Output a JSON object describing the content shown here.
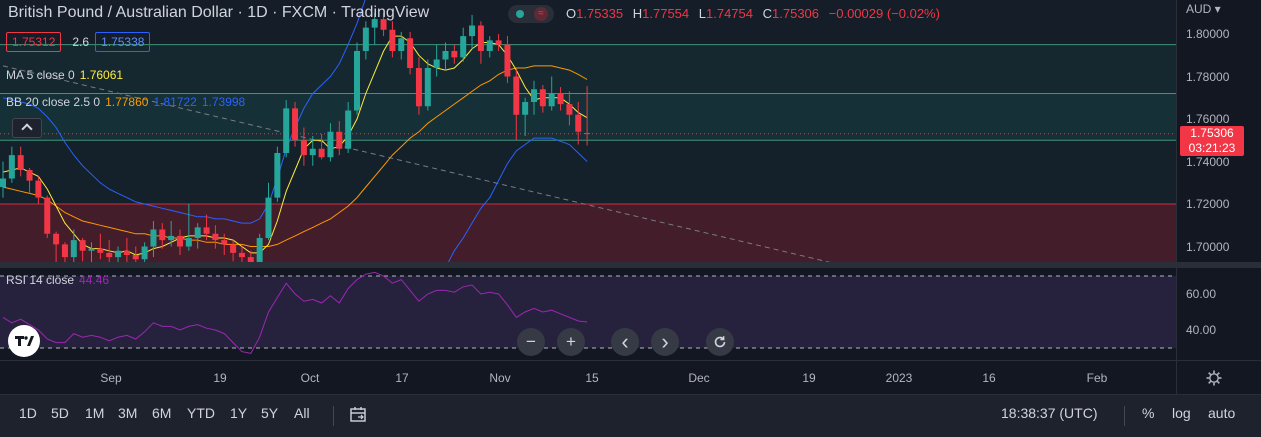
{
  "header": {
    "title": "British Pound / Australian Dollar · 1D · FXCM · TradingView",
    "ohlc": {
      "o_label": "O",
      "o": "1.75335",
      "h_label": "H",
      "h": "1.77554",
      "l_label": "L",
      "l": "1.74754",
      "c_label": "C",
      "c": "1.75306",
      "chg": "−0.00029 (−0.02%)"
    }
  },
  "legend": {
    "sell": "1.75312",
    "spread": "2.6",
    "buy": "1.75338",
    "ma_label": "MA 5 close 0",
    "ma_value": "1.76061",
    "bb_label": "BB 20 close 2.5 0",
    "bb_basis": "1.77860",
    "bb_upper": "1.81722",
    "bb_lower": "1.73998",
    "rsi_label": "RSI 14 close",
    "rsi_value": "44.46"
  },
  "price_axis": {
    "currency": "AUD",
    "ticks": [
      "1.80000",
      "1.78000",
      "1.76000",
      "1.74000",
      "1.72000",
      "1.70000"
    ],
    "last_price": "1.75306",
    "countdown": "03:21:23"
  },
  "rsi_axis": {
    "ticks": [
      "60.00",
      "40.00"
    ]
  },
  "time_axis": {
    "labels": [
      "Sep",
      "19",
      "Oct",
      "17",
      "Nov",
      "15",
      "Dec",
      "19",
      "2023",
      "16",
      "Feb"
    ]
  },
  "toolbar": {
    "ranges": [
      "1D",
      "5D",
      "1M",
      "3M",
      "6M",
      "YTD",
      "1Y",
      "5Y",
      "All"
    ],
    "clock": "18:38:37 (UTC)",
    "percent": "%",
    "log": "log",
    "auto": "auto"
  },
  "nav": {
    "zoom_out": "−",
    "zoom_in": "+",
    "left": "‹",
    "right": "›"
  },
  "colors": {
    "up": "#26a69a",
    "down": "#f23645",
    "ma": "#ffeb3b",
    "bb_basis": "#ff9800",
    "bb_band": "#2962ff",
    "rsi": "#9c27b0"
  },
  "chart_data": {
    "type": "candlestick",
    "candles": [
      {
        "o": 1.728,
        "h": 1.74,
        "l": 1.723,
        "c": 1.732
      },
      {
        "o": 1.732,
        "h": 1.747,
        "l": 1.73,
        "c": 1.743
      },
      {
        "o": 1.743,
        "h": 1.747,
        "l": 1.733,
        "c": 1.736
      },
      {
        "o": 1.736,
        "h": 1.737,
        "l": 1.725,
        "c": 1.731
      },
      {
        "o": 1.731,
        "h": 1.733,
        "l": 1.72,
        "c": 1.723
      },
      {
        "o": 1.723,
        "h": 1.724,
        "l": 1.704,
        "c": 1.706
      },
      {
        "o": 1.706,
        "h": 1.707,
        "l": 1.692,
        "c": 1.701
      },
      {
        "o": 1.701,
        "h": 1.702,
        "l": 1.69,
        "c": 1.695
      },
      {
        "o": 1.695,
        "h": 1.708,
        "l": 1.69,
        "c": 1.703
      },
      {
        "o": 1.703,
        "h": 1.704,
        "l": 1.693,
        "c": 1.698
      },
      {
        "o": 1.698,
        "h": 1.702,
        "l": 1.692,
        "c": 1.699
      },
      {
        "o": 1.699,
        "h": 1.706,
        "l": 1.694,
        "c": 1.697
      },
      {
        "o": 1.697,
        "h": 1.703,
        "l": 1.692,
        "c": 1.695
      },
      {
        "o": 1.695,
        "h": 1.7,
        "l": 1.688,
        "c": 1.698
      },
      {
        "o": 1.698,
        "h": 1.704,
        "l": 1.691,
        "c": 1.696
      },
      {
        "o": 1.696,
        "h": 1.7,
        "l": 1.688,
        "c": 1.694
      },
      {
        "o": 1.694,
        "h": 1.702,
        "l": 1.69,
        "c": 1.7
      },
      {
        "o": 1.7,
        "h": 1.712,
        "l": 1.695,
        "c": 1.708
      },
      {
        "o": 1.708,
        "h": 1.711,
        "l": 1.699,
        "c": 1.703
      },
      {
        "o": 1.703,
        "h": 1.712,
        "l": 1.7,
        "c": 1.705
      },
      {
        "o": 1.705,
        "h": 1.708,
        "l": 1.696,
        "c": 1.7
      },
      {
        "o": 1.7,
        "h": 1.72,
        "l": 1.698,
        "c": 1.704
      },
      {
        "o": 1.704,
        "h": 1.711,
        "l": 1.699,
        "c": 1.709
      },
      {
        "o": 1.709,
        "h": 1.715,
        "l": 1.703,
        "c": 1.706
      },
      {
        "o": 1.706,
        "h": 1.71,
        "l": 1.699,
        "c": 1.703
      },
      {
        "o": 1.703,
        "h": 1.706,
        "l": 1.696,
        "c": 1.701
      },
      {
        "o": 1.701,
        "h": 1.703,
        "l": 1.693,
        "c": 1.697
      },
      {
        "o": 1.697,
        "h": 1.7,
        "l": 1.688,
        "c": 1.695
      },
      {
        "o": 1.695,
        "h": 1.698,
        "l": 1.686,
        "c": 1.69
      },
      {
        "o": 1.69,
        "h": 1.706,
        "l": 1.688,
        "c": 1.704
      },
      {
        "o": 1.704,
        "h": 1.73,
        "l": 1.703,
        "c": 1.723
      },
      {
        "o": 1.723,
        "h": 1.747,
        "l": 1.721,
        "c": 1.744
      },
      {
        "o": 1.744,
        "h": 1.769,
        "l": 1.742,
        "c": 1.765
      },
      {
        "o": 1.765,
        "h": 1.768,
        "l": 1.747,
        "c": 1.75
      },
      {
        "o": 1.75,
        "h": 1.756,
        "l": 1.738,
        "c": 1.743
      },
      {
        "o": 1.743,
        "h": 1.752,
        "l": 1.738,
        "c": 1.746
      },
      {
        "o": 1.746,
        "h": 1.753,
        "l": 1.741,
        "c": 1.742
      },
      {
        "o": 1.742,
        "h": 1.758,
        "l": 1.74,
        "c": 1.754
      },
      {
        "o": 1.754,
        "h": 1.759,
        "l": 1.743,
        "c": 1.746
      },
      {
        "o": 1.746,
        "h": 1.768,
        "l": 1.744,
        "c": 1.764
      },
      {
        "o": 1.764,
        "h": 1.796,
        "l": 1.762,
        "c": 1.792
      },
      {
        "o": 1.792,
        "h": 1.806,
        "l": 1.788,
        "c": 1.803
      },
      {
        "o": 1.803,
        "h": 1.81,
        "l": 1.795,
        "c": 1.807
      },
      {
        "o": 1.807,
        "h": 1.81,
        "l": 1.799,
        "c": 1.802
      },
      {
        "o": 1.802,
        "h": 1.806,
        "l": 1.789,
        "c": 1.792
      },
      {
        "o": 1.792,
        "h": 1.801,
        "l": 1.788,
        "c": 1.798
      },
      {
        "o": 1.798,
        "h": 1.801,
        "l": 1.781,
        "c": 1.784
      },
      {
        "o": 1.784,
        "h": 1.789,
        "l": 1.762,
        "c": 1.766
      },
      {
        "o": 1.766,
        "h": 1.788,
        "l": 1.764,
        "c": 1.784
      },
      {
        "o": 1.784,
        "h": 1.795,
        "l": 1.78,
        "c": 1.788
      },
      {
        "o": 1.788,
        "h": 1.796,
        "l": 1.783,
        "c": 1.792
      },
      {
        "o": 1.792,
        "h": 1.795,
        "l": 1.786,
        "c": 1.789
      },
      {
        "o": 1.789,
        "h": 1.803,
        "l": 1.787,
        "c": 1.799
      },
      {
        "o": 1.799,
        "h": 1.809,
        "l": 1.793,
        "c": 1.804
      },
      {
        "o": 1.804,
        "h": 1.806,
        "l": 1.786,
        "c": 1.792
      },
      {
        "o": 1.792,
        "h": 1.799,
        "l": 1.789,
        "c": 1.797
      },
      {
        "o": 1.797,
        "h": 1.8,
        "l": 1.792,
        "c": 1.795
      },
      {
        "o": 1.795,
        "h": 1.799,
        "l": 1.777,
        "c": 1.78
      },
      {
        "o": 1.78,
        "h": 1.783,
        "l": 1.75,
        "c": 1.762
      },
      {
        "o": 1.762,
        "h": 1.77,
        "l": 1.752,
        "c": 1.768
      },
      {
        "o": 1.768,
        "h": 1.778,
        "l": 1.762,
        "c": 1.774
      },
      {
        "o": 1.774,
        "h": 1.776,
        "l": 1.763,
        "c": 1.766
      },
      {
        "o": 1.766,
        "h": 1.78,
        "l": 1.764,
        "c": 1.772
      },
      {
        "o": 1.772,
        "h": 1.775,
        "l": 1.764,
        "c": 1.767
      },
      {
        "o": 1.767,
        "h": 1.773,
        "l": 1.757,
        "c": 1.762
      },
      {
        "o": 1.762,
        "h": 1.768,
        "l": 1.748,
        "c": 1.754
      },
      {
        "o": 1.7534,
        "h": 1.7755,
        "l": 1.7475,
        "c": 1.7531
      }
    ],
    "ma5": [
      1.735,
      1.736,
      1.737,
      1.735,
      1.733,
      1.727,
      1.719,
      1.711,
      1.706,
      1.701,
      1.699,
      1.699,
      1.698,
      1.697,
      1.698,
      1.696,
      1.697,
      1.699,
      1.7,
      1.702,
      1.704,
      1.705,
      1.705,
      1.705,
      1.704,
      1.704,
      1.703,
      1.7,
      1.697,
      1.697,
      1.701,
      1.712,
      1.726,
      1.736,
      1.746,
      1.75,
      1.75,
      1.746,
      1.747,
      1.752,
      1.76,
      1.772,
      1.782,
      1.792,
      1.799,
      1.799,
      1.796,
      1.79,
      1.786,
      1.784,
      1.783,
      1.784,
      1.788,
      1.793,
      1.796,
      1.796,
      1.795,
      1.79,
      1.783,
      1.775,
      1.769,
      1.77,
      1.77,
      1.77,
      1.767,
      1.763,
      1.7606
    ],
    "bb_basis": [
      1.728,
      1.727,
      1.726,
      1.725,
      1.724,
      1.722,
      1.719,
      1.716,
      1.714,
      1.712,
      1.711,
      1.71,
      1.709,
      1.708,
      1.707,
      1.706,
      1.706,
      1.705,
      1.705,
      1.704,
      1.704,
      1.703,
      1.703,
      1.702,
      1.702,
      1.701,
      1.701,
      1.701,
      1.7,
      1.7,
      1.7,
      1.701,
      1.703,
      1.705,
      1.707,
      1.709,
      1.711,
      1.713,
      1.716,
      1.719,
      1.723,
      1.728,
      1.733,
      1.738,
      1.743,
      1.747,
      1.751,
      1.754,
      1.758,
      1.761,
      1.764,
      1.767,
      1.77,
      1.773,
      1.776,
      1.778,
      1.781,
      1.783,
      1.784,
      1.784,
      1.785,
      1.785,
      1.785,
      1.784,
      1.783,
      1.781,
      1.7786
    ],
    "bb_upper": [
      1.77,
      1.769,
      1.768,
      1.767,
      1.765,
      1.761,
      1.756,
      1.749,
      1.743,
      1.738,
      1.734,
      1.73,
      1.727,
      1.725,
      1.723,
      1.721,
      1.72,
      1.719,
      1.718,
      1.717,
      1.716,
      1.715,
      1.714,
      1.714,
      1.713,
      1.713,
      1.712,
      1.711,
      1.711,
      1.713,
      1.72,
      1.732,
      1.746,
      1.756,
      1.765,
      1.772,
      1.776,
      1.78,
      1.786,
      1.795,
      1.805,
      1.817,
      1.826,
      1.833,
      1.838,
      1.84,
      1.842,
      1.842,
      1.841,
      1.84,
      1.838,
      1.836,
      1.836,
      1.835,
      1.834,
      1.833,
      1.831,
      1.827,
      1.823,
      1.82,
      1.819,
      1.819,
      1.819,
      1.8185,
      1.818,
      1.8175,
      1.8172
    ],
    "bb_lower": [
      1.686,
      1.685,
      1.684,
      1.683,
      1.683,
      1.683,
      1.682,
      1.683,
      1.685,
      1.686,
      1.688,
      1.69,
      1.691,
      1.691,
      1.691,
      1.691,
      1.692,
      1.691,
      1.692,
      1.691,
      1.692,
      1.691,
      1.692,
      1.69,
      1.691,
      1.689,
      1.69,
      1.691,
      1.689,
      1.687,
      1.68,
      1.67,
      1.66,
      1.654,
      1.649,
      1.646,
      1.646,
      1.646,
      1.646,
      1.643,
      1.641,
      1.639,
      1.64,
      1.643,
      1.648,
      1.654,
      1.66,
      1.666,
      1.675,
      1.682,
      1.69,
      1.698,
      1.704,
      1.711,
      1.718,
      1.723,
      1.731,
      1.739,
      1.745,
      1.748,
      1.751,
      1.751,
      1.751,
      1.7495,
      1.748,
      1.744,
      1.74
    ],
    "rsi": [
      47,
      44,
      46,
      43,
      40,
      35,
      33,
      33,
      38,
      36,
      37,
      36,
      34,
      36,
      37,
      35,
      39,
      44,
      42,
      42,
      40,
      42,
      43,
      41,
      40,
      38,
      33,
      28,
      27,
      36,
      50,
      58,
      66,
      60,
      56,
      57,
      55,
      59,
      55,
      63,
      68,
      71,
      72,
      70,
      66,
      68,
      62,
      56,
      60,
      62,
      62,
      61,
      64,
      65,
      60,
      61,
      60,
      54,
      47,
      50,
      52,
      50,
      51,
      49,
      47,
      45,
      44.46
    ],
    "y_range": [
      1.69,
      1.82
    ],
    "rsi_range": [
      25,
      72
    ],
    "hlines": [
      1.795,
      1.772,
      1.75,
      1.72
    ],
    "trend": {
      "from": [
        0,
        1.785
      ],
      "to": [
        95,
        1.691
      ]
    }
  }
}
